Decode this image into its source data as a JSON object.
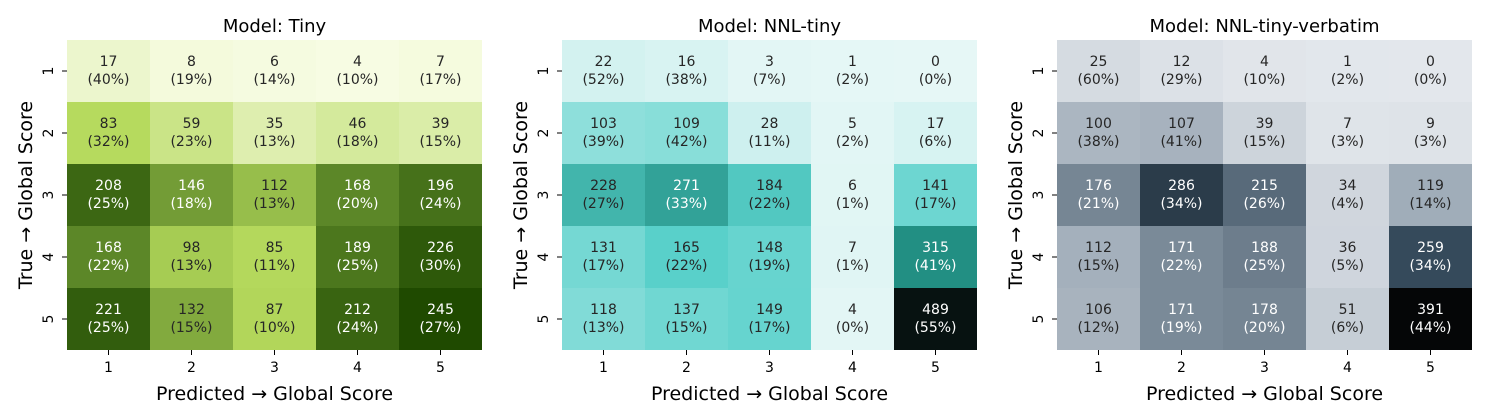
{
  "chart_data": [
    {
      "type": "heatmap",
      "title": "Model: Tiny",
      "xlabel": "Predicted → Global Score",
      "ylabel": "True → Global Score",
      "x_categories": [
        "1",
        "2",
        "3",
        "4",
        "5"
      ],
      "y_categories": [
        "1",
        "2",
        "3",
        "4",
        "5"
      ],
      "counts": [
        [
          17,
          8,
          6,
          4,
          7
        ],
        [
          83,
          59,
          35,
          46,
          39
        ],
        [
          208,
          146,
          112,
          168,
          196
        ],
        [
          168,
          98,
          85,
          189,
          226
        ],
        [
          221,
          132,
          87,
          212,
          245
        ]
      ],
      "percents": [
        [
          "(40%)",
          "(19%)",
          "(14%)",
          "(10%)",
          "(17%)"
        ],
        [
          "(32%)",
          "(23%)",
          "(13%)",
          "(18%)",
          "(15%)"
        ],
        [
          "(25%)",
          "(18%)",
          "(13%)",
          "(20%)",
          "(24%)"
        ],
        [
          "(22%)",
          "(13%)",
          "(11%)",
          "(25%)",
          "(30%)"
        ],
        [
          "(25%)",
          "(15%)",
          "(10%)",
          "(24%)",
          "(27%)"
        ]
      ],
      "colormap": [
        "#f7fce3",
        "#b5d95c",
        "#5f8a2a",
        "#1f4a00"
      ]
    },
    {
      "type": "heatmap",
      "title": "Model: NNL-tiny",
      "xlabel": "Predicted → Global Score",
      "ylabel": "True → Global Score",
      "x_categories": [
        "1",
        "2",
        "3",
        "4",
        "5"
      ],
      "y_categories": [
        "1",
        "2",
        "3",
        "4",
        "5"
      ],
      "counts": [
        [
          22,
          16,
          3,
          1,
          0
        ],
        [
          103,
          109,
          28,
          5,
          17
        ],
        [
          228,
          271,
          184,
          6,
          141
        ],
        [
          131,
          165,
          148,
          7,
          315
        ],
        [
          118,
          137,
          149,
          4,
          489
        ]
      ],
      "percents": [
        [
          "(52%)",
          "(38%)",
          "(7%)",
          "(2%)",
          "(0%)"
        ],
        [
          "(39%)",
          "(42%)",
          "(11%)",
          "(2%)",
          "(6%)"
        ],
        [
          "(27%)",
          "(33%)",
          "(22%)",
          "(1%)",
          "(17%)"
        ],
        [
          "(17%)",
          "(22%)",
          "(19%)",
          "(1%)",
          "(41%)"
        ],
        [
          "(13%)",
          "(15%)",
          "(17%)",
          "(0%)",
          "(55%)"
        ]
      ],
      "colormap": [
        "#e6f7f6",
        "#5ad1cb",
        "#1e8a7e",
        "#071211"
      ]
    },
    {
      "type": "heatmap",
      "title": "Model: NNL-tiny-verbatim",
      "xlabel": "Predicted → Global Score",
      "ylabel": "True → Global Score",
      "x_categories": [
        "1",
        "2",
        "3",
        "4",
        "5"
      ],
      "y_categories": [
        "1",
        "2",
        "3",
        "4",
        "5"
      ],
      "counts": [
        [
          25,
          12,
          4,
          1,
          0
        ],
        [
          100,
          107,
          39,
          7,
          9
        ],
        [
          176,
          286,
          215,
          34,
          119
        ],
        [
          112,
          171,
          188,
          36,
          259
        ],
        [
          106,
          171,
          178,
          51,
          391
        ]
      ],
      "percents": [
        [
          "(60%)",
          "(29%)",
          "(10%)",
          "(2%)",
          "(0%)"
        ],
        [
          "(38%)",
          "(41%)",
          "(15%)",
          "(3%)",
          "(3%)"
        ],
        [
          "(21%)",
          "(34%)",
          "(26%)",
          "(4%)",
          "(14%)"
        ],
        [
          "(15%)",
          "(22%)",
          "(25%)",
          "(5%)",
          "(34%)"
        ],
        [
          "(12%)",
          "(19%)",
          "(20%)",
          "(6%)",
          "(44%)"
        ]
      ],
      "colormap": [
        "#e3e7ec",
        "#9aa7b4",
        "#34495a",
        "#050607"
      ]
    }
  ]
}
